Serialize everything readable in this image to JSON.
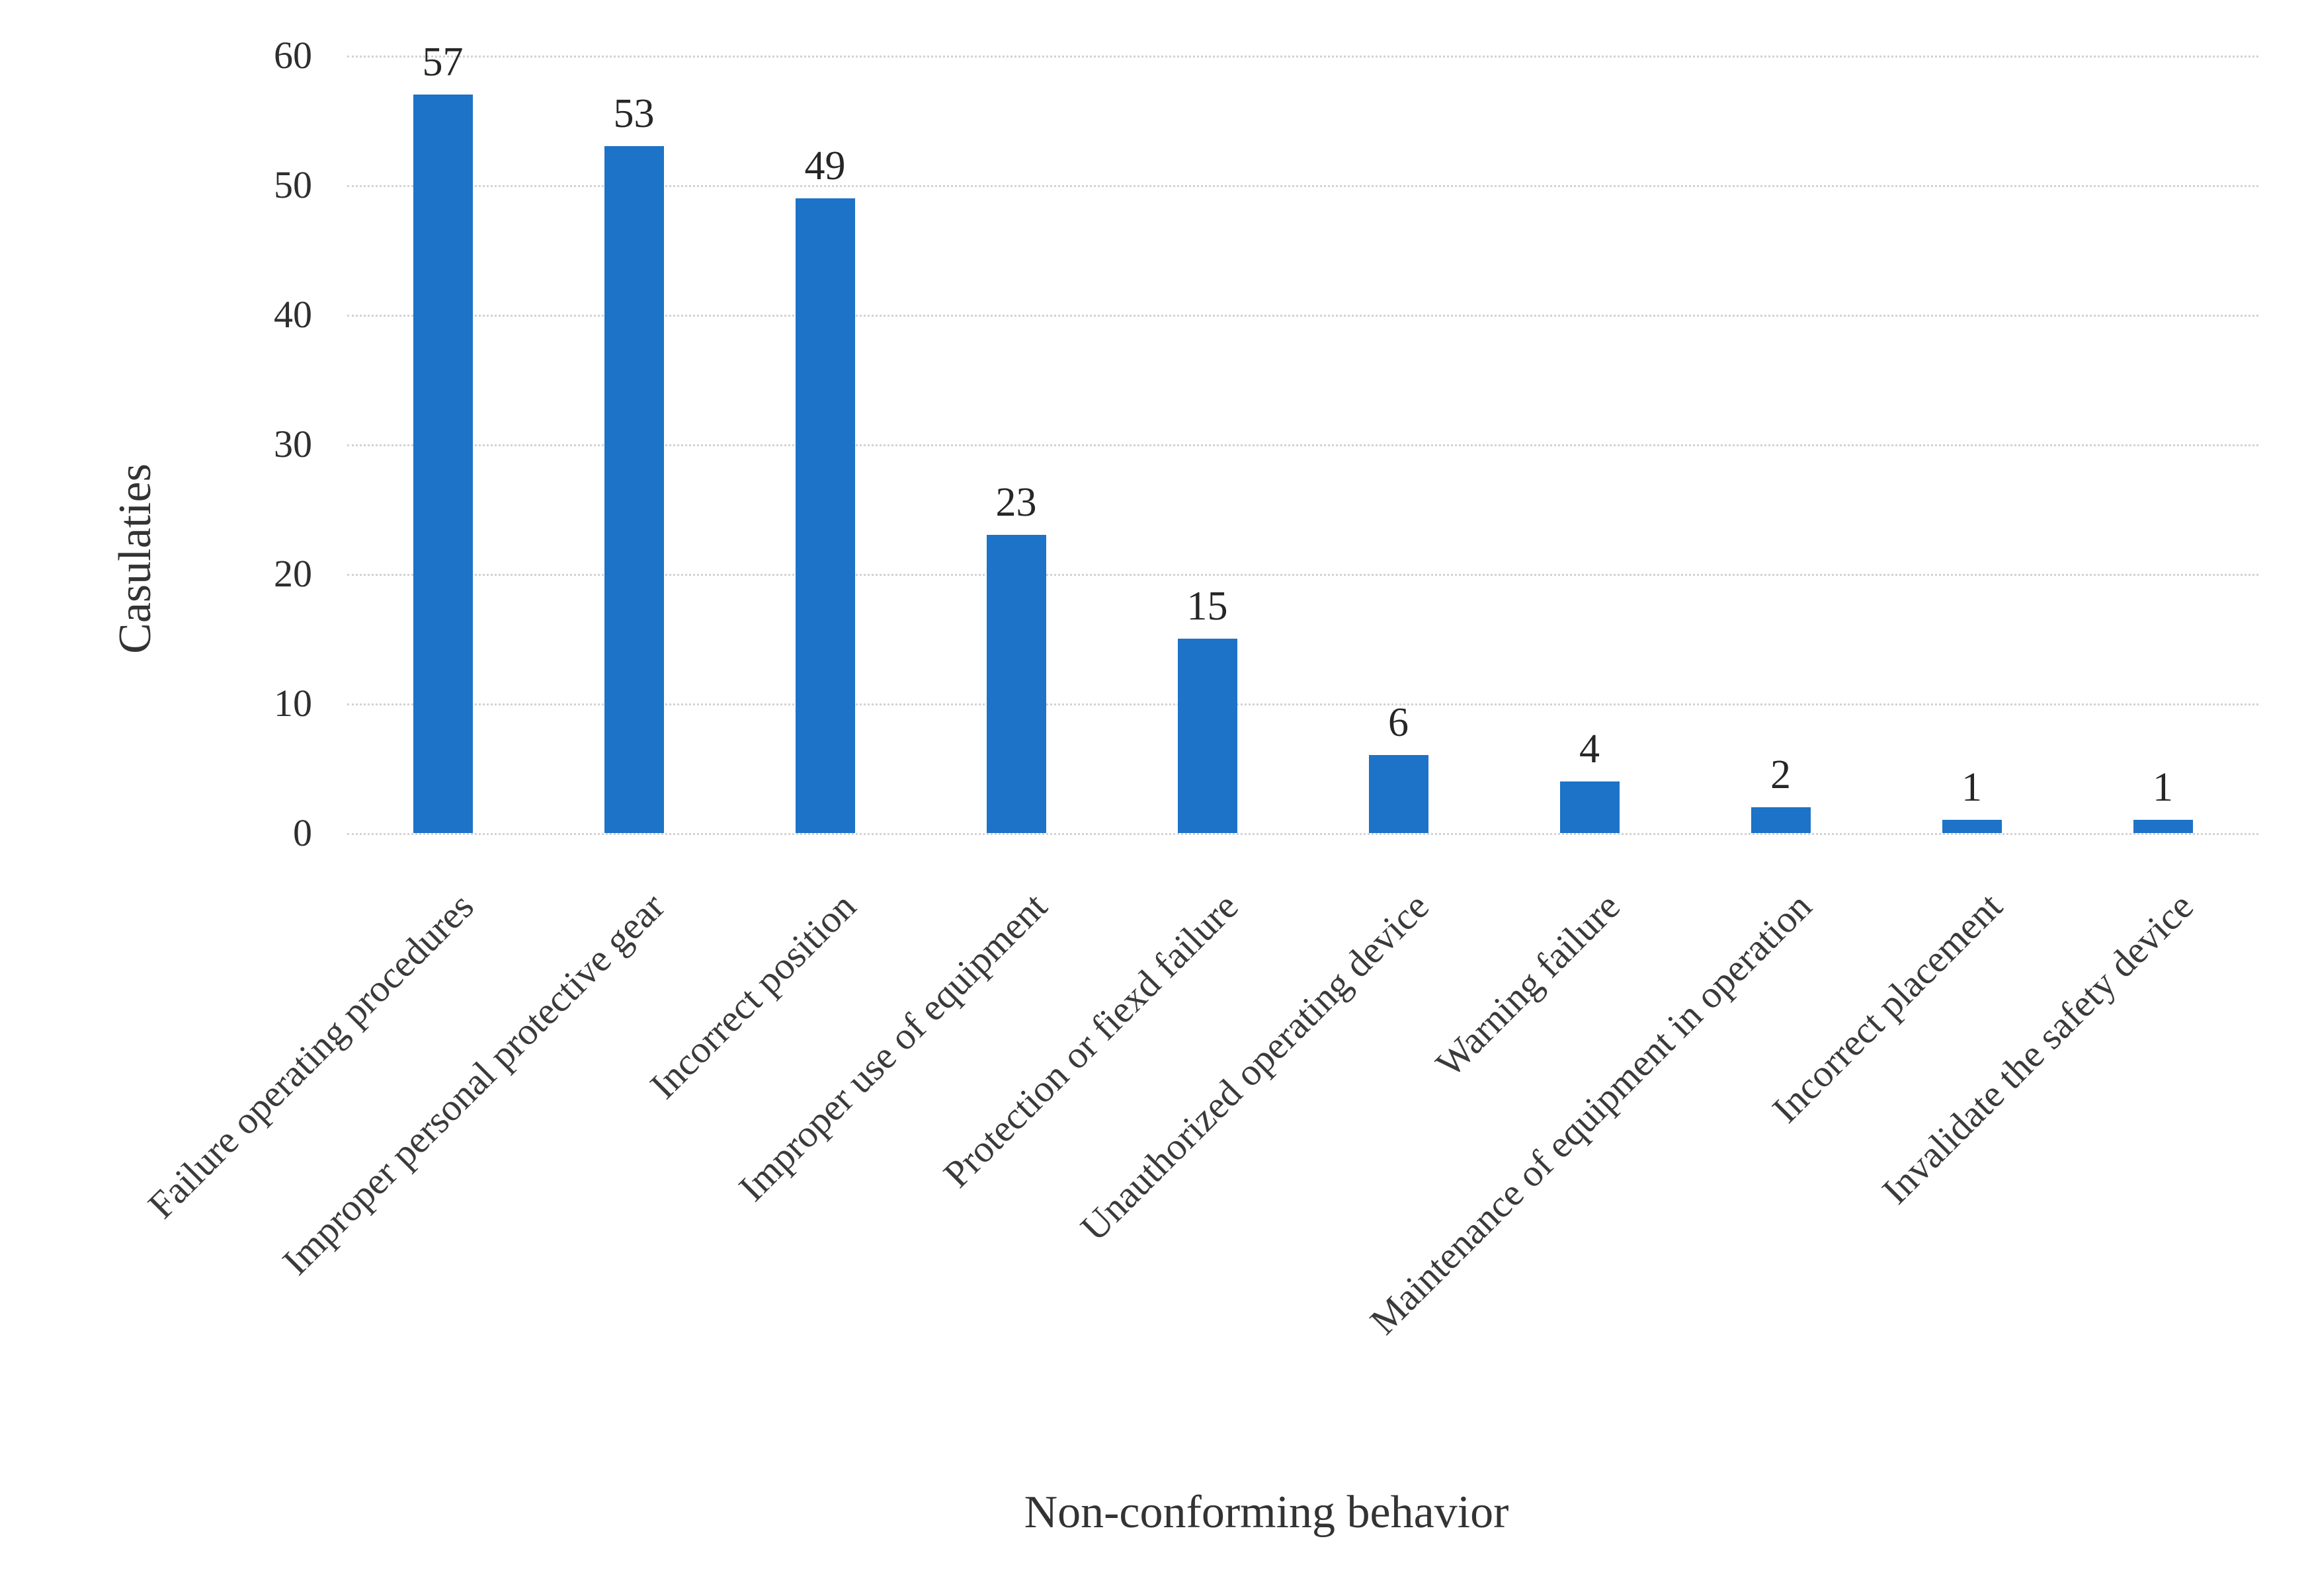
{
  "chart_data": {
    "type": "bar",
    "title": "",
    "xlabel": "Non-conforming behavior",
    "ylabel": "Casulaties",
    "categories": [
      "Failure operating procedures",
      "Improper personal protective gear",
      "Incorrect position",
      "Improper use of equipment",
      "Protection or fiexd failure",
      "Unauthorized operating device",
      "Warning failure",
      "Maintenance of equipment in operation",
      "Incorrect placement",
      "Invalidate the safety device"
    ],
    "values": [
      57,
      53,
      49,
      23,
      15,
      6,
      4,
      2,
      1,
      1
    ],
    "data_labels": [
      "57",
      "53",
      "49",
      "23",
      "15",
      "6",
      "4",
      "2",
      "1",
      "1"
    ],
    "yticks": [
      0,
      10,
      20,
      30,
      40,
      50,
      60
    ],
    "ylim": [
      0,
      60
    ],
    "grid": "horizontal",
    "gridline_style": "dotted",
    "legend": "none",
    "category_label_rotation_deg": -45,
    "colors": {
      "bar": "#1d73c7",
      "gridline": "#d2d2d2",
      "tick_text": "#2e2e2e",
      "value_text": "#262626",
      "category_text": "#3a3a3a",
      "axis_title_text": "#333333",
      "background": "#ffffff"
    }
  }
}
